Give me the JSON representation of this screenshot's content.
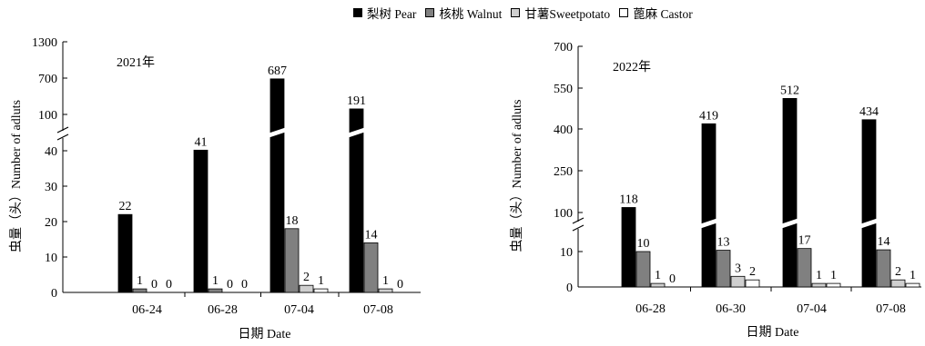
{
  "legend": [
    {
      "label": "梨树  Pear",
      "color": "#000000"
    },
    {
      "label": "核桃  Walnut",
      "color": "#808080"
    },
    {
      "label": "甘薯Sweetpotato",
      "color": "#cfcfcf"
    },
    {
      "label": "蓖麻  Castor",
      "color": "#ffffff"
    }
  ],
  "chart_data": [
    {
      "type": "bar",
      "title": "2021年",
      "xlabel": "日期  Date",
      "ylabel": "虫量（头）Number of adluts",
      "categories": [
        "06-24",
        "06-28",
        "07-04",
        "07-08"
      ],
      "series": [
        {
          "name": "梨树  Pear",
          "values": [
            22,
            41,
            687,
            191
          ],
          "labels": [
            "22",
            "41",
            "687",
            "191"
          ]
        },
        {
          "name": "核桃  Walnut",
          "values": [
            1,
            1,
            18,
            14
          ],
          "labels": [
            "1",
            "1",
            "18",
            "14"
          ]
        },
        {
          "name": "甘薯Sweetpotato",
          "values": [
            0,
            0,
            2,
            1
          ],
          "labels": [
            "0",
            "0",
            "2",
            "1"
          ]
        },
        {
          "name": "蓖麻  Castor",
          "values": [
            0,
            0,
            1,
            0
          ],
          "labels": [
            "0",
            "0",
            "1",
            "0"
          ]
        }
      ],
      "y_axis_break": true,
      "yticks": [
        "0",
        "10",
        "20",
        "30",
        "40",
        "100",
        "700",
        "1300"
      ]
    },
    {
      "type": "bar",
      "title": "2022年",
      "xlabel": "日期  Date",
      "ylabel": "虫量（头）Number of adluts",
      "categories": [
        "06-28",
        "06-30",
        "07-04",
        "07-08"
      ],
      "series": [
        {
          "name": "梨树  Pear",
          "values": [
            118,
            419,
            512,
            434
          ],
          "labels": [
            "118",
            "419",
            "512",
            "434"
          ]
        },
        {
          "name": "核桃  Walnut",
          "values": [
            10,
            13,
            17,
            14
          ],
          "labels": [
            "10",
            "13",
            "17",
            "14"
          ]
        },
        {
          "name": "甘薯Sweetpotato",
          "values": [
            1,
            3,
            1,
            2
          ],
          "labels": [
            "1",
            "3",
            "1",
            "2"
          ]
        },
        {
          "name": "蓖麻  Castor",
          "values": [
            0,
            2,
            1,
            1
          ],
          "labels": [
            "0",
            "2",
            "1",
            "1"
          ]
        }
      ],
      "y_axis_break": true,
      "yticks": [
        "0",
        "10",
        "100",
        "250",
        "400",
        "550",
        "700"
      ]
    }
  ]
}
